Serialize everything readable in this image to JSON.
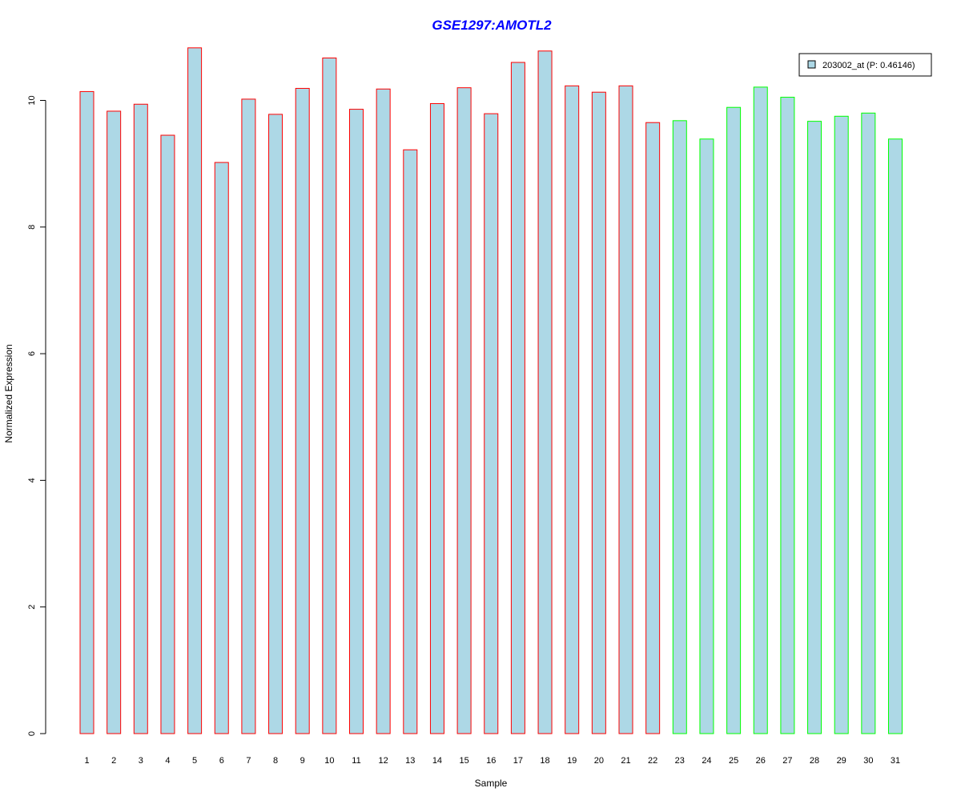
{
  "chart_data": {
    "type": "bar",
    "title": "GSE1297:AMOTL2",
    "xlabel": "Sample",
    "ylabel": "Normalized Expression",
    "ylim": [
      0,
      11
    ],
    "yticks": [
      0,
      2,
      4,
      6,
      8,
      10
    ],
    "grid": false,
    "legend_position": "top-right",
    "categories": [
      "1",
      "2",
      "3",
      "4",
      "5",
      "6",
      "7",
      "8",
      "9",
      "10",
      "11",
      "12",
      "13",
      "14",
      "15",
      "16",
      "17",
      "18",
      "19",
      "20",
      "21",
      "22",
      "23",
      "24",
      "25",
      "26",
      "27",
      "28",
      "29",
      "30",
      "31"
    ],
    "series": [
      {
        "name": "203002_at (P: 0.46146)",
        "values": [
          10.14,
          9.83,
          9.94,
          9.45,
          10.83,
          9.02,
          10.02,
          9.78,
          10.19,
          10.67,
          9.86,
          10.18,
          9.22,
          9.95,
          10.2,
          9.79,
          10.6,
          10.78,
          10.23,
          10.13,
          10.23,
          9.65,
          9.68,
          9.39,
          9.89,
          10.21,
          10.05,
          9.67,
          9.75,
          9.8,
          9.39
        ]
      }
    ],
    "bar_groups": [
      1,
      1,
      1,
      1,
      1,
      1,
      1,
      1,
      1,
      1,
      1,
      1,
      1,
      1,
      1,
      1,
      1,
      1,
      1,
      1,
      1,
      1,
      2,
      2,
      2,
      2,
      2,
      2,
      2,
      2,
      2
    ],
    "colors": {
      "bar_fill": "#add8e6",
      "group_1_border": "#ff0000",
      "group_2_border": "#00ff00",
      "title": "#0000ff",
      "axis": "#000000"
    }
  }
}
